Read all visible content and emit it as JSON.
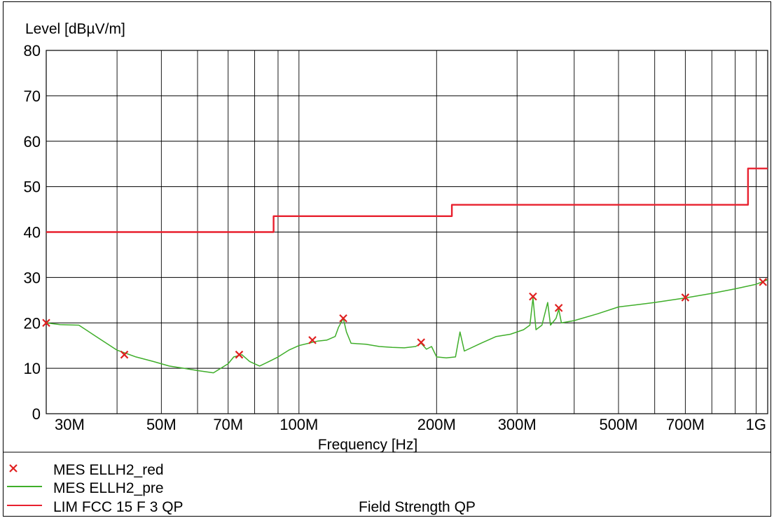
{
  "chart_data": {
    "type": "line",
    "ylabel": "Level [dBµV/m]",
    "xlabel": "Frequency [Hz]",
    "x_scale": "log",
    "xlim": [
      28000000,
      1060000000
    ],
    "ylim": [
      0,
      80
    ],
    "y_ticks": [
      0,
      10,
      20,
      30,
      40,
      50,
      60,
      70,
      80
    ],
    "x_tick_labels": [
      {
        "value": 30000000,
        "label": "30M"
      },
      {
        "value": 50000000,
        "label": "50M"
      },
      {
        "value": 70000000,
        "label": "70M"
      },
      {
        "value": 100000000,
        "label": "100M"
      },
      {
        "value": 200000000,
        "label": "200M"
      },
      {
        "value": 300000000,
        "label": "300M"
      },
      {
        "value": 500000000,
        "label": "500M"
      },
      {
        "value": 700000000,
        "label": "700M"
      },
      {
        "value": 1000000000,
        "label": "1G"
      }
    ],
    "x_gridlines": [
      40000000,
      50000000,
      60000000,
      70000000,
      80000000,
      90000000,
      100000000,
      200000000,
      300000000,
      400000000,
      500000000,
      600000000,
      700000000,
      800000000,
      900000000,
      1000000000
    ],
    "grid": true,
    "series": [
      {
        "name": "MES   ELLH2_red",
        "kind": "markers",
        "color": "#e02020",
        "x": [
          28000000,
          41500000,
          74000000,
          107000000,
          125000000,
          185000000,
          325000000,
          370000000,
          700000000,
          1035000000
        ],
        "y": [
          20,
          13,
          13,
          16.2,
          21,
          15.7,
          25.8,
          23.3,
          25.6,
          29
        ]
      },
      {
        "name": "MES   ELLH2_pre",
        "kind": "line",
        "color": "#3fae2a",
        "x": [
          28000000,
          30000000,
          33000000,
          36000000,
          40000000,
          44000000,
          48000000,
          52000000,
          56000000,
          60000000,
          65000000,
          70000000,
          72000000,
          75000000,
          78000000,
          82000000,
          86000000,
          90000000,
          95000000,
          100000000,
          105000000,
          110000000,
          115000000,
          120000000,
          122000000,
          125000000,
          127000000,
          130000000,
          140000000,
          150000000,
          160000000,
          170000000,
          180000000,
          185000000,
          190000000,
          195000000,
          200000000,
          210000000,
          220000000,
          225000000,
          230000000,
          250000000,
          270000000,
          290000000,
          310000000,
          320000000,
          325000000,
          330000000,
          340000000,
          350000000,
          355000000,
          365000000,
          370000000,
          375000000,
          400000000,
          450000000,
          500000000,
          550000000,
          600000000,
          650000000,
          700000000,
          800000000,
          900000000,
          1000000000,
          1060000000
        ],
        "y": [
          20,
          19.6,
          19.5,
          17,
          14,
          12.5,
          11.5,
          10.5,
          10,
          9.5,
          9,
          11,
          12.5,
          13,
          11.5,
          10.5,
          11.5,
          12.5,
          14,
          15,
          15.5,
          16,
          16.2,
          17,
          19,
          21,
          18,
          15.5,
          15.3,
          14.8,
          14.6,
          14.5,
          14.8,
          15.5,
          14.2,
          14.8,
          12.5,
          12.3,
          12.5,
          18,
          13.8,
          15.5,
          17,
          17.5,
          18.5,
          19.5,
          25.5,
          18.5,
          19.5,
          24.5,
          19.5,
          21,
          23,
          20,
          20.5,
          22,
          23.5,
          24,
          24.5,
          25,
          25.5,
          26.5,
          27.5,
          28.5,
          29.5
        ]
      },
      {
        "name": "LIM   FCC 15 F 3 QP",
        "kind": "step",
        "color": "#e8202e",
        "x": [
          28000000,
          88000000,
          88000000,
          216000000,
          216000000,
          960000000,
          960000000,
          1060000000
        ],
        "y": [
          40,
          40,
          43.5,
          43.5,
          46,
          46,
          54,
          54
        ]
      }
    ],
    "legend_position": "bottom-left",
    "legend_caption": "Field Strength QP"
  }
}
